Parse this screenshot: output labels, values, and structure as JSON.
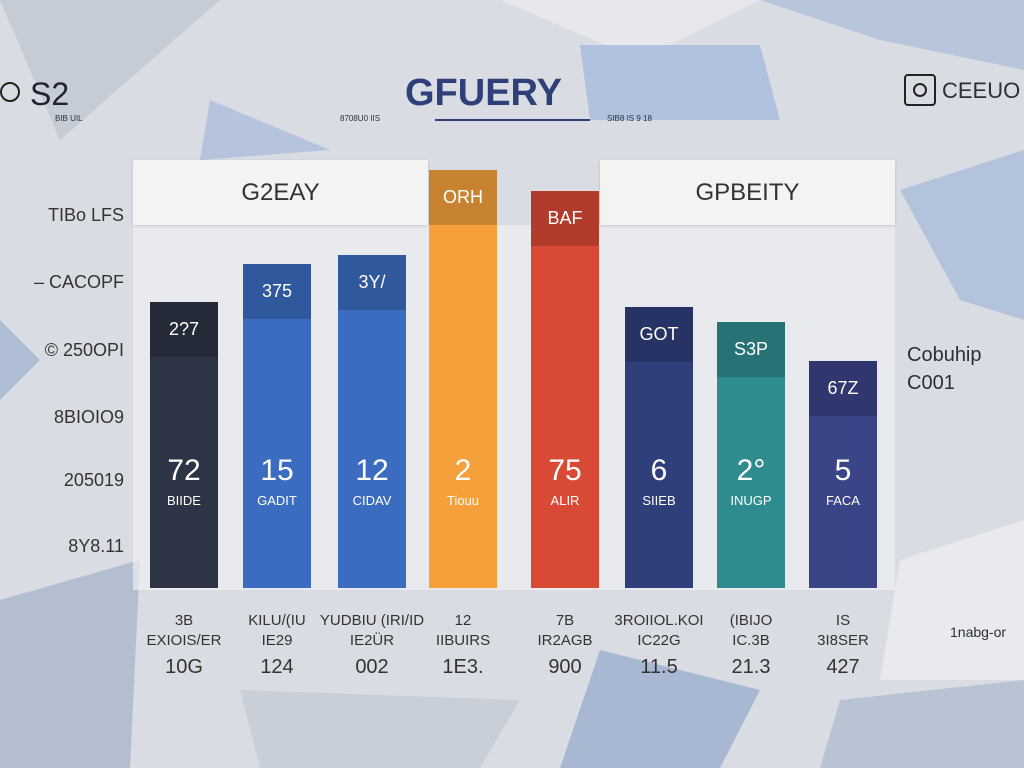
{
  "header": {
    "left_logo": "S2",
    "left_caption": "BIB UIL",
    "title": "GFUERY",
    "title_caption_left": "8708U0 IIS",
    "title_caption_right": "SIB8 IS 9 18",
    "right_logo": "CEEUO"
  },
  "panels": [
    "G2EAY",
    "GPBEITY"
  ],
  "y_labels": [
    "TIBo LFS",
    "– CACOPF",
    "© 250OPI",
    "8BIOIO9",
    "205019",
    "8Y8.11"
  ],
  "bars": [
    {
      "top_label": "2?7",
      "value_label": "72",
      "sub_label": "BIIDE"
    },
    {
      "top_label": "375",
      "value_label": "15",
      "sub_label": "GADIT"
    },
    {
      "top_label": "3Y/",
      "value_label": "12",
      "sub_label": "CIDAV"
    },
    {
      "top_label": "ORH",
      "value_label": "2",
      "sub_label": "Tiouu"
    },
    {
      "top_label": "BAF",
      "value_label": "75",
      "sub_label": "ALIR"
    },
    {
      "top_label": "GOT",
      "value_label": "6",
      "sub_label": "SIIEB"
    },
    {
      "top_label": "S3P",
      "value_label": "2°",
      "sub_label": "INUGP"
    },
    {
      "top_label": "67Z",
      "value_label": "5",
      "sub_label": "FACA"
    }
  ],
  "columns": [
    [
      "3B",
      "EXIOIS/ER",
      "10G"
    ],
    [
      "KILU/(IU",
      "IE29",
      "124"
    ],
    [
      "YUDBIU (IRI/ID",
      "IE2ÜR",
      "002"
    ],
    [
      "12",
      "IIBUIRS",
      "1E3."
    ],
    [
      "7B",
      "IR2AGB",
      "900"
    ],
    [
      "3ROIIOL.KOI",
      "IC22G",
      "11.5"
    ],
    [
      "(IBIJO",
      "IC.3B",
      "21.3"
    ],
    [
      "IS",
      "3I8SER",
      "427"
    ]
  ],
  "side_labels": [
    "Cobuhip",
    "C001",
    "1nabg-or"
  ]
}
